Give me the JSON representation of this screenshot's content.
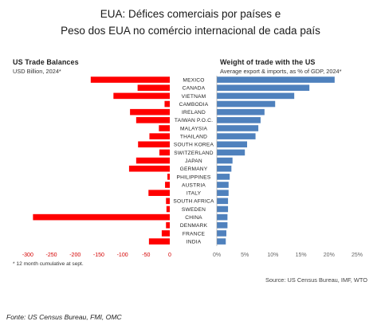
{
  "title_line1": "EUA: Défices comerciais por países  e",
  "title_line2": "Peso dos EUA no comércio internacional de cada país",
  "source": "Source: US Census Bureau, IMF, WTO",
  "fonte": "Fonte: US Census Bureau, FMI, OMC",
  "colors": {
    "left_bar": "#ff0000",
    "right_bar": "#4f81bd",
    "left_axis": "#d40000"
  },
  "chart_data": [
    {
      "type": "bar",
      "orientation": "horizontal",
      "title": "US Trade Balances",
      "subtitle": "USD Billion, 2024*",
      "footnote": "* 12 month cumulative at sept.",
      "categories": [
        "MEXICO",
        "CANADA",
        "VIETNAM",
        "CAMBODIA",
        "IRELAND",
        "TAIWAN P.O.C.",
        "MALAYSIA",
        "THAILAND",
        "SOUTH KOREA",
        "SWITZERLAND",
        "JAPAN",
        "GERMANY",
        "PHILIPPINES",
        "AUSTRIA",
        "ITALY",
        "SOUTH AFRICA",
        "SWEDEN",
        "CHINA",
        "DENMARK",
        "FRANCE",
        "INDIA"
      ],
      "values": [
        -167,
        -68,
        -119,
        -11,
        -84,
        -71,
        -23,
        -43,
        -67,
        -22,
        -71,
        -86,
        -5,
        -10,
        -45,
        -8,
        -7,
        -289,
        -8,
        -17,
        -44
      ],
      "xlim": [
        -325,
        0
      ],
      "xticks": [
        -300,
        -250,
        -200,
        -150,
        -100,
        -50,
        0
      ],
      "xtick_labels": [
        "-300",
        "-250",
        "-200",
        "-150",
        "-100",
        "-50",
        "0"
      ]
    },
    {
      "type": "bar",
      "orientation": "horizontal",
      "title": "Weight of trade with the US",
      "subtitle": "Average export & imports,  as % of GDP, 2024*",
      "categories": [
        "MEXICO",
        "CANADA",
        "VIETNAM",
        "CAMBODIA",
        "IRELAND",
        "TAIWAN P.O.C.",
        "MALAYSIA",
        "THAILAND",
        "SOUTH KOREA",
        "SWITZERLAND",
        "JAPAN",
        "GERMANY",
        "PHILIPPINES",
        "AUSTRIA",
        "ITALY",
        "SOUTH AFRICA",
        "SWEDEN",
        "CHINA",
        "DENMARK",
        "FRANCE",
        "INDIA"
      ],
      "values": [
        21.0,
        16.5,
        13.8,
        10.4,
        8.5,
        7.8,
        7.4,
        6.9,
        5.4,
        5.0,
        2.8,
        2.6,
        2.3,
        2.1,
        2.1,
        2.0,
        2.0,
        1.9,
        1.9,
        1.7,
        1.6
      ],
      "xlim": [
        0,
        25
      ],
      "xticks": [
        0,
        5,
        10,
        15,
        20,
        25
      ],
      "xtick_labels": [
        "0%",
        "5%",
        "10%",
        "15%",
        "20%",
        "25%"
      ]
    }
  ]
}
